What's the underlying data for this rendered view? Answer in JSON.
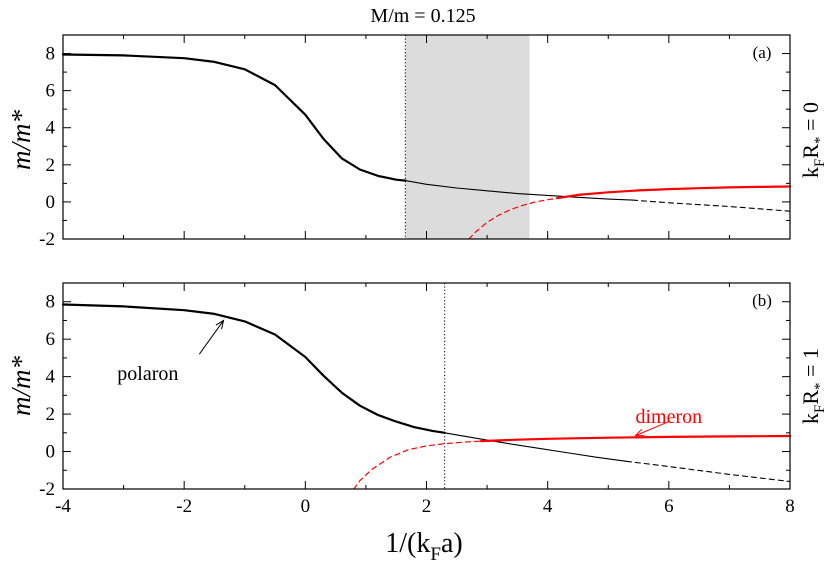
{
  "chart_data": {
    "type": "line",
    "title": "M/m = 0.125",
    "xlabel": {
      "main": "1/(k",
      "sub": "F",
      "tail": "a)"
    },
    "xlim": [
      -4,
      8
    ],
    "xticks": [
      -4,
      -2,
      0,
      2,
      4,
      6,
      8
    ],
    "xtick_labels": [
      "-4",
      "-2",
      "0",
      "2",
      "4",
      "6",
      "8"
    ],
    "colors": {
      "polaron": "#000000",
      "dimeron": "#ff0000",
      "shade": "#dcdcdc",
      "axis": "#000000"
    },
    "panels": [
      {
        "tag": "(a)",
        "ylabel": "m/m*",
        "side_label": {
          "pre": "k",
          "sub": "F",
          "mid": "R",
          "sub2": "*",
          "post": " = 0"
        },
        "ylim": [
          -2,
          9
        ],
        "yticks": [
          -2,
          0,
          2,
          4,
          6,
          8
        ],
        "ytick_labels": [
          "-2",
          "0",
          "2",
          "4",
          "6",
          "8"
        ],
        "vline_x": 1.65,
        "shaded_region": [
          1.65,
          3.7
        ],
        "series": [
          {
            "name": "polaron-thick",
            "color": "#000000",
            "width": 2.2,
            "dash": "",
            "x": [
              -4,
              -3,
              -2,
              -1.5,
              -1,
              -0.5,
              0,
              0.3,
              0.6,
              0.9,
              1.2,
              1.5,
              1.65
            ],
            "y": [
              7.95,
              7.9,
              7.75,
              7.55,
              7.15,
              6.3,
              4.7,
              3.4,
              2.35,
              1.75,
              1.4,
              1.2,
              1.15
            ]
          },
          {
            "name": "polaron-thin",
            "color": "#000000",
            "width": 1.1,
            "dash": "",
            "x": [
              1.65,
              2,
              2.5,
              3,
              3.5,
              4,
              4.5,
              5,
              5.4
            ],
            "y": [
              1.15,
              0.95,
              0.75,
              0.6,
              0.45,
              0.35,
              0.25,
              0.15,
              0.1
            ]
          },
          {
            "name": "polaron-dashed",
            "color": "#000000",
            "width": 1.1,
            "dash": "5,4",
            "x": [
              5.4,
              6,
              7,
              8
            ],
            "y": [
              0.1,
              -0.05,
              -0.25,
              -0.5
            ]
          },
          {
            "name": "dimeron-dashed",
            "color": "#ff0000",
            "width": 1.2,
            "dash": "5,4",
            "x": [
              2.7,
              2.8,
              3,
              3.2,
              3.4,
              3.6,
              3.8,
              4,
              4.15
            ],
            "y": [
              -2,
              -1.65,
              -1.1,
              -0.7,
              -0.4,
              -0.18,
              0,
              0.12,
              0.2
            ]
          },
          {
            "name": "dimeron-solid",
            "color": "#ff0000",
            "width": 2.2,
            "dash": "",
            "x": [
              4.15,
              4.5,
              5,
              5.5,
              6,
              6.5,
              7,
              7.5,
              8
            ],
            "y": [
              0.2,
              0.38,
              0.52,
              0.62,
              0.69,
              0.74,
              0.78,
              0.81,
              0.83
            ]
          }
        ]
      },
      {
        "tag": "(b)",
        "ylabel": "m/m*",
        "side_label": {
          "pre": "k",
          "sub": "F",
          "mid": "R",
          "sub2": "*",
          "post": " = 1"
        },
        "ylim": [
          -2,
          9
        ],
        "yticks": [
          -2,
          0,
          2,
          4,
          6,
          8
        ],
        "ytick_labels": [
          "-2",
          "0",
          "2",
          "4",
          "6",
          "8"
        ],
        "vline_x": 2.3,
        "shaded_region": null,
        "annotations": [
          {
            "text": "polaron",
            "color": "#000000",
            "tx": -2.6,
            "ty": 4.2,
            "ax_from": [
              -1.75,
              5.2
            ],
            "ax_to": [
              -1.35,
              7.0
            ]
          },
          {
            "text": "dimeron",
            "color": "#ff0000",
            "tx": 6.0,
            "ty": 1.9,
            "ax_from": [
              6.0,
              1.6
            ],
            "ax_to": [
              5.45,
              0.85
            ]
          }
        ],
        "series": [
          {
            "name": "polaron-thick",
            "color": "#000000",
            "width": 2.2,
            "dash": "",
            "x": [
              -4,
              -3,
              -2,
              -1.5,
              -1,
              -0.5,
              0,
              0.3,
              0.6,
              0.9,
              1.2,
              1.5,
              1.8,
              2.1,
              2.3
            ],
            "y": [
              7.85,
              7.75,
              7.55,
              7.35,
              6.95,
              6.25,
              5.05,
              4.05,
              3.15,
              2.45,
              1.95,
              1.6,
              1.3,
              1.1,
              1.0
            ]
          },
          {
            "name": "polaron-thin",
            "color": "#000000",
            "width": 1.1,
            "dash": "",
            "x": [
              2.3,
              2.8,
              3.3,
              3.8,
              4.3,
              4.8,
              5.3
            ],
            "y": [
              1.0,
              0.72,
              0.45,
              0.2,
              -0.05,
              -0.3,
              -0.52
            ]
          },
          {
            "name": "polaron-dashed",
            "color": "#000000",
            "width": 1.1,
            "dash": "5,4",
            "x": [
              5.3,
              6,
              7,
              8
            ],
            "y": [
              -0.52,
              -0.8,
              -1.22,
              -1.6
            ]
          },
          {
            "name": "dimeron-dashed",
            "color": "#ff0000",
            "width": 1.2,
            "dash": "5,4",
            "x": [
              0.8,
              0.9,
              1.1,
              1.4,
              1.7,
              2.0,
              2.3,
              2.6,
              2.9
            ],
            "y": [
              -2,
              -1.55,
              -0.95,
              -0.3,
              0.1,
              0.3,
              0.42,
              0.5,
              0.56
            ]
          },
          {
            "name": "dimeron-solid",
            "color": "#ff0000",
            "width": 2.2,
            "dash": "",
            "x": [
              2.9,
              3.5,
              4,
              5,
              6,
              7,
              8
            ],
            "y": [
              0.56,
              0.63,
              0.68,
              0.74,
              0.78,
              0.81,
              0.83
            ]
          }
        ]
      }
    ]
  }
}
